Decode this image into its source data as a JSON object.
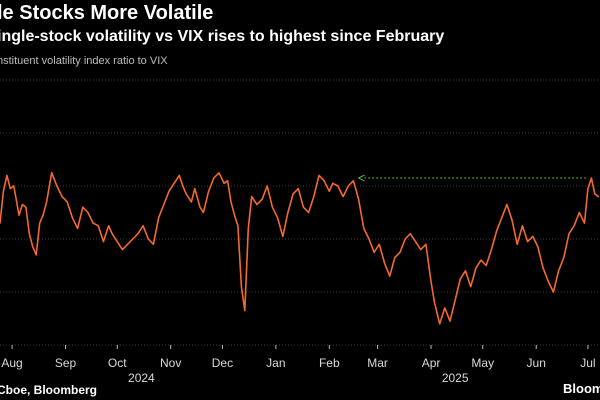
{
  "header": {
    "title": "le Stocks More Volatile",
    "subtitle": "ingle-stock volatility vs VIX rises to highest since February",
    "unit_label": "nstituent volatility index ratio to VIX"
  },
  "footer": {
    "source": "Cboe, Bloomberg",
    "brand": "Bloom"
  },
  "colors": {
    "background": "#000000",
    "line": "#f26a2e",
    "arrow": "#5fbf3f",
    "grid": "#3a3a3a",
    "text": "#ffffff"
  },
  "chart_data": {
    "type": "line",
    "grid": true,
    "date_range": [
      "2024-07-25",
      "2025-07-08"
    ],
    "month_ticks": [
      {
        "label": "Aug",
        "date": "2024-08-01"
      },
      {
        "label": "Sep",
        "date": "2024-09-01"
      },
      {
        "label": "Oct",
        "date": "2024-10-01"
      },
      {
        "label": "Nov",
        "date": "2024-11-01"
      },
      {
        "label": "Dec",
        "date": "2024-12-01"
      },
      {
        "label": "Jan",
        "date": "2025-01-01"
      },
      {
        "label": "Feb",
        "date": "2025-02-01"
      },
      {
        "label": "Mar",
        "date": "2025-03-01"
      },
      {
        "label": "Apr",
        "date": "2025-04-01"
      },
      {
        "label": "May",
        "date": "2025-05-01"
      },
      {
        "label": "Jun",
        "date": "2025-06-01"
      },
      {
        "label": "Jul",
        "date": "2025-07-01"
      }
    ],
    "year_labels": [
      {
        "label": "2024",
        "date": "2024-10-15"
      },
      {
        "label": "2025",
        "date": "2025-04-15"
      }
    ],
    "ylim": [
      0,
      10
    ],
    "gridlines_y": [
      0,
      2,
      4,
      6,
      8,
      10
    ],
    "series": [
      {
        "points": [
          [
            "2024-07-25",
            4.6
          ],
          [
            "2024-07-27",
            5.8
          ],
          [
            "2024-07-29",
            6.4
          ],
          [
            "2024-07-31",
            5.9
          ],
          [
            "2024-08-02",
            6.0
          ],
          [
            "2024-08-05",
            4.9
          ],
          [
            "2024-08-07",
            5.3
          ],
          [
            "2024-08-09",
            5.2
          ],
          [
            "2024-08-11",
            4.2
          ],
          [
            "2024-08-13",
            3.7
          ],
          [
            "2024-08-15",
            3.4
          ],
          [
            "2024-08-17",
            4.6
          ],
          [
            "2024-08-19",
            4.9
          ],
          [
            "2024-08-21",
            5.4
          ],
          [
            "2024-08-24",
            6.5
          ],
          [
            "2024-08-27",
            6.0
          ],
          [
            "2024-08-30",
            5.6
          ],
          [
            "2024-09-02",
            5.4
          ],
          [
            "2024-09-05",
            4.8
          ],
          [
            "2024-09-08",
            4.4
          ],
          [
            "2024-09-11",
            5.2
          ],
          [
            "2024-09-14",
            5.0
          ],
          [
            "2024-09-17",
            4.6
          ],
          [
            "2024-09-20",
            4.5
          ],
          [
            "2024-09-23",
            3.9
          ],
          [
            "2024-09-26",
            4.5
          ],
          [
            "2024-09-28",
            4.2
          ],
          [
            "2024-10-01",
            3.9
          ],
          [
            "2024-10-04",
            3.6
          ],
          [
            "2024-10-07",
            3.8
          ],
          [
            "2024-10-10",
            4.0
          ],
          [
            "2024-10-13",
            4.2
          ],
          [
            "2024-10-16",
            4.5
          ],
          [
            "2024-10-19",
            4.0
          ],
          [
            "2024-10-22",
            3.8
          ],
          [
            "2024-10-25",
            4.8
          ],
          [
            "2024-10-28",
            5.3
          ],
          [
            "2024-10-31",
            5.8
          ],
          [
            "2024-11-03",
            6.1
          ],
          [
            "2024-11-06",
            6.4
          ],
          [
            "2024-11-08",
            6.0
          ],
          [
            "2024-11-10",
            5.7
          ],
          [
            "2024-11-13",
            5.4
          ],
          [
            "2024-11-15",
            5.9
          ],
          [
            "2024-11-18",
            5.2
          ],
          [
            "2024-11-20",
            5.0
          ],
          [
            "2024-11-23",
            5.8
          ],
          [
            "2024-11-26",
            6.3
          ],
          [
            "2024-11-29",
            6.5
          ],
          [
            "2024-12-02",
            6.1
          ],
          [
            "2024-12-04",
            6.2
          ],
          [
            "2024-12-06",
            5.4
          ],
          [
            "2024-12-08",
            4.9
          ],
          [
            "2024-12-10",
            4.5
          ],
          [
            "2024-12-12",
            2.2
          ],
          [
            "2024-12-14",
            1.3
          ],
          [
            "2024-12-16",
            4.4
          ],
          [
            "2024-12-18",
            5.6
          ],
          [
            "2024-12-21",
            5.3
          ],
          [
            "2024-12-24",
            5.5
          ],
          [
            "2024-12-27",
            6.0
          ],
          [
            "2024-12-30",
            5.2
          ],
          [
            "2025-01-02",
            4.8
          ],
          [
            "2025-01-05",
            4.1
          ],
          [
            "2025-01-08",
            5.0
          ],
          [
            "2025-01-11",
            5.7
          ],
          [
            "2025-01-14",
            5.9
          ],
          [
            "2025-01-17",
            5.2
          ],
          [
            "2025-01-20",
            5.0
          ],
          [
            "2025-01-23",
            5.6
          ],
          [
            "2025-01-26",
            6.4
          ],
          [
            "2025-01-29",
            6.2
          ],
          [
            "2025-02-01",
            5.8
          ],
          [
            "2025-02-03",
            6.1
          ],
          [
            "2025-02-06",
            6.0
          ],
          [
            "2025-02-09",
            5.6
          ],
          [
            "2025-02-12",
            6.0
          ],
          [
            "2025-02-15",
            6.2
          ],
          [
            "2025-02-18",
            5.5
          ],
          [
            "2025-02-21",
            4.4
          ],
          [
            "2025-02-24",
            4.0
          ],
          [
            "2025-02-27",
            3.5
          ],
          [
            "2025-03-02",
            3.8
          ],
          [
            "2025-03-05",
            3.1
          ],
          [
            "2025-03-08",
            2.6
          ],
          [
            "2025-03-11",
            3.3
          ],
          [
            "2025-03-14",
            3.5
          ],
          [
            "2025-03-17",
            4.0
          ],
          [
            "2025-03-20",
            4.2
          ],
          [
            "2025-03-23",
            3.9
          ],
          [
            "2025-03-26",
            3.6
          ],
          [
            "2025-03-29",
            3.8
          ],
          [
            "2025-04-01",
            2.4
          ],
          [
            "2025-04-03",
            1.6
          ],
          [
            "2025-04-06",
            0.8
          ],
          [
            "2025-04-09",
            1.4
          ],
          [
            "2025-04-12",
            0.9
          ],
          [
            "2025-04-15",
            1.7
          ],
          [
            "2025-04-18",
            2.5
          ],
          [
            "2025-04-21",
            2.8
          ],
          [
            "2025-04-24",
            2.2
          ],
          [
            "2025-04-27",
            2.9
          ],
          [
            "2025-04-30",
            3.2
          ],
          [
            "2025-05-03",
            3.0
          ],
          [
            "2025-05-06",
            3.6
          ],
          [
            "2025-05-09",
            4.3
          ],
          [
            "2025-05-12",
            4.8
          ],
          [
            "2025-05-15",
            5.3
          ],
          [
            "2025-05-18",
            4.7
          ],
          [
            "2025-05-21",
            3.8
          ],
          [
            "2025-05-24",
            4.5
          ],
          [
            "2025-05-27",
            3.9
          ],
          [
            "2025-05-30",
            4.1
          ],
          [
            "2025-06-02",
            3.7
          ],
          [
            "2025-06-05",
            2.9
          ],
          [
            "2025-06-08",
            2.4
          ],
          [
            "2025-06-11",
            2.0
          ],
          [
            "2025-06-14",
            2.8
          ],
          [
            "2025-06-17",
            3.3
          ],
          [
            "2025-06-20",
            4.2
          ],
          [
            "2025-06-23",
            4.5
          ],
          [
            "2025-06-26",
            5.0
          ],
          [
            "2025-06-29",
            4.6
          ],
          [
            "2025-07-01",
            5.9
          ],
          [
            "2025-07-03",
            6.3
          ],
          [
            "2025-07-05",
            5.7
          ],
          [
            "2025-07-07",
            5.6
          ]
        ]
      }
    ],
    "annotations": [
      {
        "type": "dashed-arrow",
        "from": [
          "2025-06-30",
          6.3
        ],
        "to": [
          "2025-02-18",
          6.3
        ]
      }
    ]
  }
}
